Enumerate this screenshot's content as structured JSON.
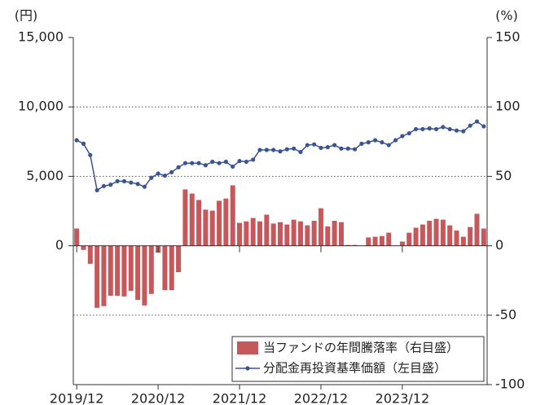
{
  "chart_data": {
    "type": "bar_line",
    "y_unit_label": "(円)",
    "y2_unit_label": "(%)",
    "categories": [
      "2019/12",
      null,
      null,
      null,
      null,
      null,
      null,
      null,
      null,
      null,
      null,
      null,
      "2020/12",
      null,
      null,
      null,
      null,
      null,
      null,
      null,
      null,
      null,
      null,
      null,
      "2021/12",
      null,
      null,
      null,
      null,
      null,
      null,
      null,
      null,
      null,
      null,
      null,
      "2022/12",
      null,
      null,
      null,
      null,
      null,
      null,
      null,
      null,
      null,
      null,
      null,
      "2023/12",
      null,
      null,
      null,
      null,
      null,
      null,
      null,
      null,
      null,
      null,
      null,
      null
    ],
    "series": [
      {
        "name": "当ファンドの年間騰落率（右目盛）",
        "type": "bar",
        "axis": "y2",
        "color": "#c5585b",
        "values": [
          12.4,
          -3,
          -13,
          -44.7,
          -43.5,
          -36,
          -36,
          -36.5,
          -32.4,
          -39,
          -43,
          -34.7,
          -5,
          -32,
          -32,
          -19,
          40.6,
          37.6,
          33,
          26,
          25.3,
          32.4,
          34,
          43.5,
          16.5,
          17.6,
          20,
          17.6,
          22.4,
          16,
          17,
          15.3,
          18.8,
          17.6,
          14.7,
          18,
          27,
          14,
          18,
          17,
          0.6,
          0.6,
          0,
          6,
          6.5,
          7,
          9.4,
          0,
          3,
          9.4,
          13,
          15.3,
          18,
          19.4,
          18.8,
          14.7,
          11,
          6.5,
          13.5,
          23,
          12.4
        ]
      },
      {
        "name": "分配金再投資基準価額（左目盛）",
        "type": "line",
        "color": "#3b5492",
        "values": [
          7600,
          7350,
          6530,
          4000,
          4300,
          4400,
          4650,
          4650,
          4550,
          4450,
          4250,
          4900,
          5200,
          5050,
          5300,
          5650,
          5950,
          5950,
          5950,
          5800,
          6050,
          5950,
          6050,
          5700,
          6100,
          6050,
          6200,
          6900,
          6900,
          6900,
          6800,
          6950,
          7000,
          6750,
          7250,
          7300,
          7050,
          7100,
          7250,
          7000,
          7000,
          6950,
          7350,
          7450,
          7600,
          7450,
          7250,
          7600,
          7900,
          8100,
          8400,
          8400,
          8450,
          8400,
          8550,
          8400,
          8300,
          8250,
          8650,
          8950,
          8600
        ]
      }
    ],
    "ylim": [
      -10000,
      15000
    ],
    "yticks": [
      0,
      {
        "value": 5000,
        "label": "5,000"
      },
      {
        "value": 10000,
        "label": "10,000"
      },
      {
        "value": 15000,
        "label": "15,000"
      }
    ],
    "y2lim": [
      -100,
      150
    ],
    "y2ticks": [
      -100,
      -50,
      0,
      50,
      100,
      150
    ],
    "grid": true,
    "legend": "lower right"
  }
}
